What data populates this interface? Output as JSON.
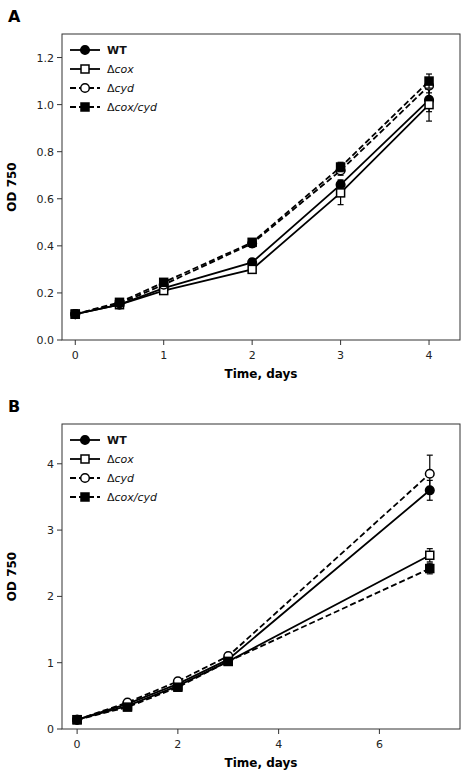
{
  "chart_data": [
    {
      "type": "line",
      "title": "A",
      "xlabel": "Time, days",
      "ylabel": "OD 750",
      "xlim": [
        -0.15,
        4.35
      ],
      "ylim": [
        0,
        1.3
      ],
      "xticks": [
        0,
        1,
        2,
        3,
        4
      ],
      "yticks": [
        {
          "value": 0,
          "label": "0.0"
        },
        0.2,
        0.4,
        0.6,
        0.8,
        {
          "value": 1.0,
          "label": "1.0"
        },
        1.2
      ],
      "legend": "upper left",
      "x": [
        0,
        0.5,
        1,
        2,
        3,
        4
      ],
      "series": [
        {
          "name": "WT",
          "color": "black",
          "line_style": "solid",
          "marker": "circle",
          "values": [
            0.11,
            0.15,
            0.22,
            0.33,
            0.66,
            1.02
          ],
          "errors": [
            0.005,
            0.005,
            0.01,
            0.015,
            0.02,
            0.05
          ]
        },
        {
          "name": "Δcox",
          "color": "black",
          "line_style": "solid",
          "marker": "open-square",
          "values": [
            0.11,
            0.15,
            0.21,
            0.3,
            0.625,
            1.0
          ],
          "errors": [
            0.005,
            0.005,
            0.01,
            0.015,
            0.05,
            0.07
          ]
        },
        {
          "name": "Δcyd",
          "color": "black",
          "line_style": "dashed",
          "marker": "open-circle",
          "values": [
            0.11,
            0.155,
            0.235,
            0.41,
            0.72,
            1.08
          ],
          "errors": [
            0.005,
            0.005,
            0.01,
            0.015,
            0.02,
            0.03
          ]
        },
        {
          "name": "Δcox/cyd",
          "color": "black",
          "line_style": "dashed",
          "marker": "square",
          "values": [
            0.11,
            0.16,
            0.245,
            0.415,
            0.735,
            1.1
          ],
          "errors": [
            0.005,
            0.005,
            0.01,
            0.015,
            0.02,
            0.03
          ]
        }
      ]
    },
    {
      "type": "line",
      "title": "B",
      "xlabel": "Time, days",
      "ylabel": "OD 750",
      "xlim": [
        -0.3,
        7.6
      ],
      "ylim": [
        0,
        4.6
      ],
      "xticks": [
        0,
        2,
        4,
        6
      ],
      "yticks": [
        0,
        1,
        2,
        3,
        4
      ],
      "legend": "upper left",
      "x": [
        0,
        1,
        2,
        3,
        7
      ],
      "series": [
        {
          "name": "WT",
          "color": "black",
          "line_style": "solid",
          "marker": "circle",
          "values": [
            0.14,
            0.38,
            0.68,
            1.05,
            3.6
          ],
          "errors": [
            0.01,
            0.02,
            0.03,
            0.04,
            0.15
          ]
        },
        {
          "name": "Δcox",
          "color": "black",
          "line_style": "solid",
          "marker": "open-square",
          "values": [
            0.14,
            0.35,
            0.65,
            1.02,
            2.62
          ],
          "errors": [
            0.01,
            0.02,
            0.03,
            0.04,
            0.1
          ]
        },
        {
          "name": "Δcyd",
          "color": "black",
          "line_style": "dashed",
          "marker": "open-circle",
          "values": [
            0.14,
            0.4,
            0.72,
            1.1,
            3.85
          ],
          "errors": [
            0.01,
            0.02,
            0.03,
            0.04,
            0.28
          ]
        },
        {
          "name": "Δcox/cyd",
          "color": "black",
          "line_style": "dashed",
          "marker": "square",
          "values": [
            0.14,
            0.33,
            0.63,
            1.02,
            2.42
          ],
          "errors": [
            0.01,
            0.02,
            0.03,
            0.04,
            0.08
          ]
        }
      ]
    }
  ]
}
